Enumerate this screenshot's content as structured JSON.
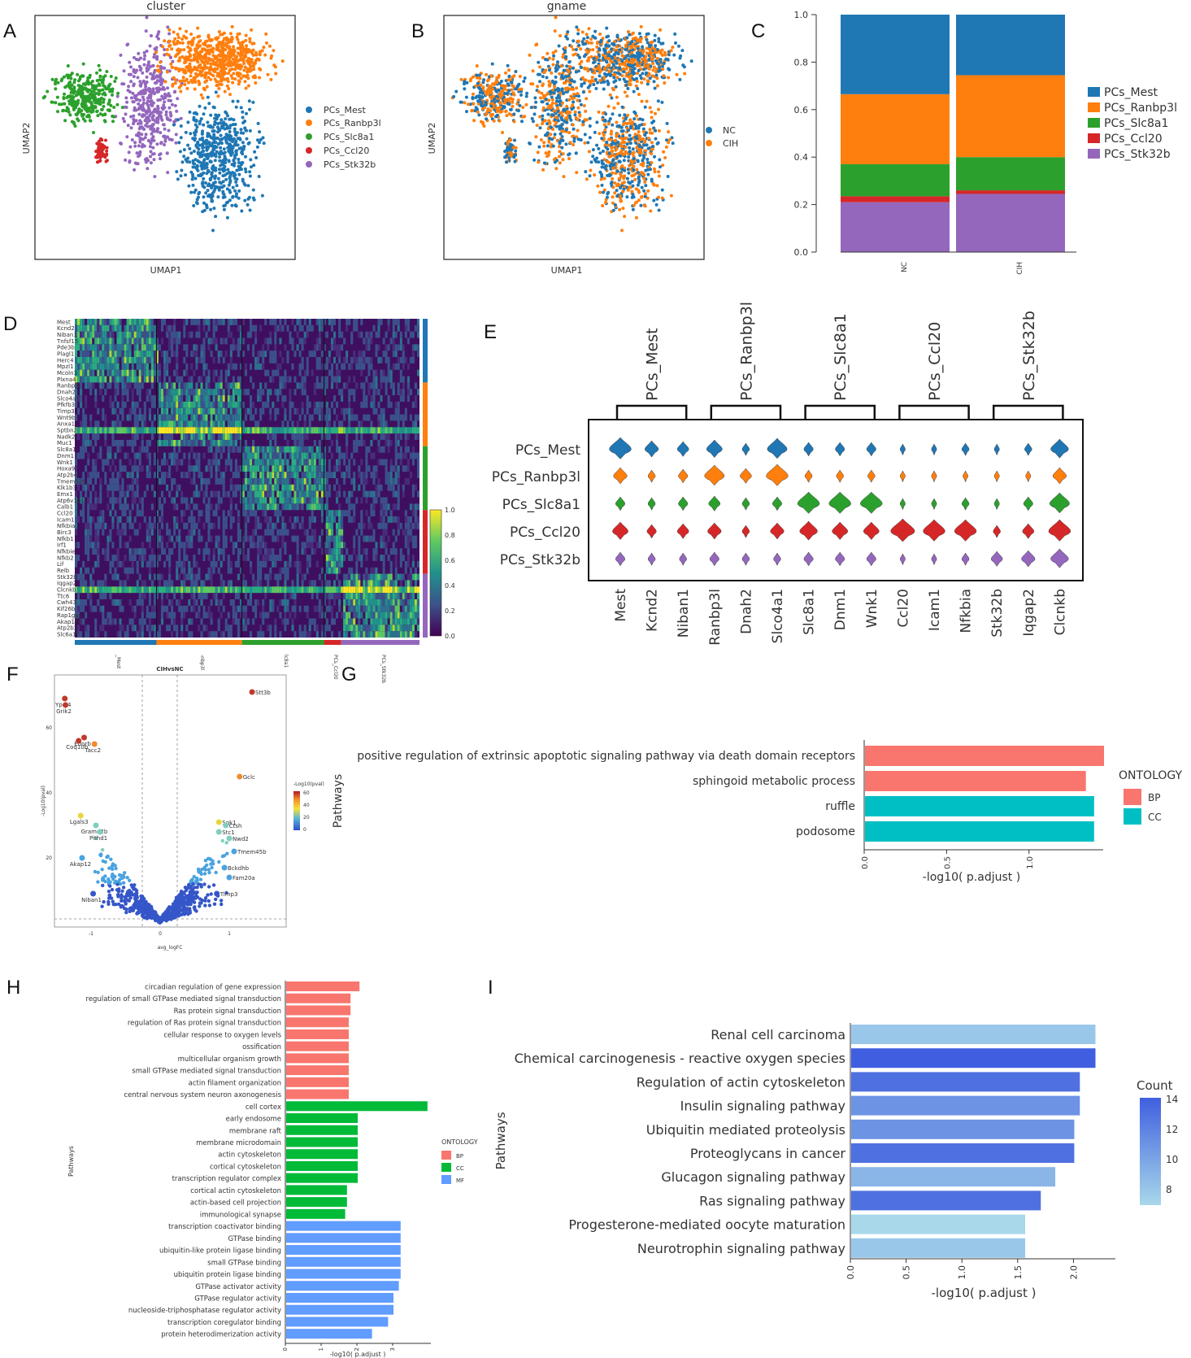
{
  "panel_labels": [
    "A",
    "B",
    "C",
    "D",
    "E",
    "F",
    "G",
    "H",
    "I"
  ],
  "colors": {
    "PCs_Mest": "#1f77b4",
    "PCs_Ranbp3l": "#ff7f0e",
    "PCs_Slc8a1": "#2ca02c",
    "PCs_Ccl20": "#d62728",
    "PCs_Stk32b": "#9467bd",
    "BP": "#f8766d",
    "CC": "#00bfc4",
    "H_CC": "#00ba38",
    "MF": "#619cff"
  },
  "chart_data": [
    {
      "id": "A",
      "type": "scatter",
      "title": "cluster",
      "xlabel": "UMAP1",
      "ylabel": "UMAP2",
      "legend": [
        "PCs_Mest",
        "PCs_Ranbp3l",
        "PCs_Slc8a1",
        "PCs_Ccl20",
        "PCs_Stk32b"
      ],
      "cluster_centers": [
        {
          "name": "PCs_Mest",
          "x": 0.78,
          "y": 0.55
        },
        {
          "name": "PCs_Ranbp3l",
          "x": 0.72,
          "y": 0.2
        },
        {
          "name": "PCs_Slc8a1",
          "x": 0.22,
          "y": 0.3
        },
        {
          "name": "PCs_Ccl20",
          "x": 0.3,
          "y": 0.58
        },
        {
          "name": "PCs_Stk32b",
          "x": 0.45,
          "y": 0.45
        }
      ]
    },
    {
      "id": "B",
      "type": "scatter",
      "title": "gname",
      "xlabel": "UMAP1",
      "ylabel": "UMAP2",
      "legend": [
        "NC",
        "CIH"
      ]
    },
    {
      "id": "C",
      "type": "bar",
      "stacked": true,
      "categories": [
        "NC",
        "CIH"
      ],
      "series": [
        {
          "name": "PCs_Stk32b",
          "values": [
            0.21,
            0.245
          ]
        },
        {
          "name": "PCs_Ccl20",
          "values": [
            0.025,
            0.015
          ]
        },
        {
          "name": "PCs_Slc8a1",
          "values": [
            0.135,
            0.14
          ]
        },
        {
          "name": "PCs_Ranbp3l",
          "values": [
            0.295,
            0.345
          ]
        },
        {
          "name": "PCs_Mest",
          "values": [
            0.335,
            0.255
          ]
        }
      ],
      "legend": [
        "PCs_Mest",
        "PCs_Ranbp3l",
        "PCs_Slc8a1",
        "PCs_Ccl20",
        "PCs_Stk32b"
      ],
      "yticks": [
        "0.0",
        "0.2",
        "0.4",
        "0.6",
        "0.8",
        "1.0"
      ],
      "ylim": [
        0,
        1
      ]
    },
    {
      "id": "D",
      "type": "heatmap",
      "genes": [
        "Mest",
        "Kcnd2",
        "Niban1",
        "Tnfsf15",
        "Pde3b",
        "Plagl1",
        "Herc4",
        "Mpzl1",
        "Mcoln3",
        "Plxna4",
        "Ranbp3l",
        "Dnah2",
        "Slco4a1",
        "Pfkfb3",
        "Timp3",
        "Wnt9b",
        "Anxa1",
        "Sptbn2",
        "Nadk2",
        "Muc1",
        "Slc8a1",
        "Dnm1",
        "Wnk1",
        "Hoxa9",
        "Atp2b4",
        "Tmem52b",
        "Klk1b3",
        "Emx1",
        "Atp6v1b1",
        "Calb1",
        "Ccl20",
        "Icam1",
        "Nfkbia",
        "Birc3",
        "Nfkb1",
        "Irf1",
        "Nfkbie",
        "Nfkb2",
        "Lif",
        "Relb",
        "Stk32b",
        "Iqgap2",
        "Clcnkb",
        "Ttc6",
        "Cwh43",
        "Kif26b",
        "Rap1gap",
        "Akap17b",
        "Atp2b2",
        "Slc6a17"
      ],
      "groups": [
        "_Mest",
        "-nbp3l",
        "lc8a1",
        "PCs_Ccl20",
        "PCs_Stk32b"
      ],
      "colorbar_ticks": [
        "0.0",
        "0.2",
        "0.4",
        "0.6",
        "0.8",
        "1.0"
      ]
    },
    {
      "id": "E",
      "type": "violin",
      "group_headers": [
        "PCs_Mest",
        "PCs_Ranbp3l",
        "PCs_Slc8a1",
        "PCs_Ccl20",
        "PCs_Stk32b"
      ],
      "rows": [
        "PCs_Mest",
        "PCs_Ranbp3l",
        "PCs_Slc8a1",
        "PCs_Ccl20",
        "PCs_Stk32b"
      ],
      "genes": [
        "Mest",
        "Kcnd2",
        "Niban1",
        "Ranbp3l",
        "Dnah2",
        "Slco4a1",
        "Slc8a1",
        "Dnm1",
        "Wnk1",
        "Ccl20",
        "Icam1",
        "Nfkbia",
        "Stk32b",
        "Iqgap2",
        "Clcnkb"
      ],
      "expression": [
        [
          0.9,
          0.5,
          0.4,
          0.6,
          0.2,
          0.8,
          0.3,
          0.3,
          0.3,
          0.1,
          0.1,
          0.2,
          0.1,
          0.2,
          0.7
        ],
        [
          0.5,
          0.2,
          0.3,
          0.8,
          0.4,
          0.9,
          0.2,
          0.2,
          0.2,
          0.1,
          0.1,
          0.1,
          0.1,
          0.1,
          0.5
        ],
        [
          0.3,
          0.2,
          0.3,
          0.4,
          0.2,
          0.3,
          0.9,
          0.9,
          0.9,
          0.1,
          0.1,
          0.2,
          0.1,
          0.3,
          0.8
        ],
        [
          0.6,
          0.3,
          0.4,
          0.5,
          0.2,
          0.5,
          0.7,
          0.6,
          0.6,
          1.0,
          0.9,
          0.9,
          0.2,
          0.4,
          0.9
        ],
        [
          0.3,
          0.2,
          0.2,
          0.3,
          0.2,
          0.2,
          0.3,
          0.3,
          0.3,
          0.1,
          0.1,
          0.2,
          0.4,
          0.5,
          0.7
        ]
      ]
    },
    {
      "id": "F",
      "type": "scatter",
      "title": "CIHvsNC",
      "xlabel": "avg_logFC",
      "ylabel": "-Log10(pval)",
      "colorbar_title": "-Log10(pval)",
      "colorbar_ticks": [
        "60",
        "40",
        "20",
        "0"
      ],
      "xticks": [
        "-1",
        "0",
        "1"
      ],
      "yticks": [
        "20",
        "40",
        "60"
      ],
      "labeled_points": [
        {
          "gene": "Ypel4",
          "x": -1.38,
          "y": 69
        },
        {
          "gene": "Grik2",
          "x": -1.37,
          "y": 67
        },
        {
          "gene": "Stt3b",
          "x": 1.33,
          "y": 71
        },
        {
          "gene": "Ednrb",
          "x": -1.1,
          "y": 57
        },
        {
          "gene": "Coq10b",
          "x": -1.18,
          "y": 56
        },
        {
          "gene": "Tacc2",
          "x": -0.95,
          "y": 55
        },
        {
          "gene": "Gclc",
          "x": 1.15,
          "y": 45
        },
        {
          "gene": "Lgals3",
          "x": -1.15,
          "y": 33
        },
        {
          "gene": "Gramd2b",
          "x": -0.93,
          "y": 30
        },
        {
          "gene": "Pithd1",
          "x": -0.87,
          "y": 28
        },
        {
          "gene": "Akap12",
          "x": -1.13,
          "y": 20
        },
        {
          "gene": "Niban1",
          "x": -0.97,
          "y": 9
        },
        {
          "gene": "Sgk1",
          "x": 0.85,
          "y": 31
        },
        {
          "gene": "Ctsh",
          "x": 0.95,
          "y": 30
        },
        {
          "gene": "Stc1",
          "x": 0.85,
          "y": 28
        },
        {
          "gene": "Nwd2",
          "x": 1.0,
          "y": 26
        },
        {
          "gene": "Tmem45b",
          "x": 1.07,
          "y": 22
        },
        {
          "gene": "Bckdhb",
          "x": 0.93,
          "y": 17
        },
        {
          "gene": "Fam20a",
          "x": 1.0,
          "y": 14
        },
        {
          "gene": "Timp3",
          "x": 0.82,
          "y": 9
        }
      ]
    },
    {
      "id": "G",
      "type": "bar",
      "orientation": "horizontal",
      "ylabel": "Pathways",
      "xlabel": "-log10( p.adjust )",
      "legend_title": "ONTOLOGY",
      "legend": [
        "BP",
        "CC"
      ],
      "xticks": [
        "0.0",
        "0.5",
        "1.0"
      ],
      "xlim": [
        0,
        1.45
      ],
      "categories": [
        "positive regulation of extrinsic apoptotic signaling pathway via death domain receptors",
        "sphingoid metabolic process",
        "ruffle",
        "podosome"
      ],
      "values": [
        1.45,
        1.34,
        1.39,
        1.39
      ],
      "ontology": [
        "BP",
        "BP",
        "CC",
        "CC"
      ]
    },
    {
      "id": "H",
      "type": "bar",
      "orientation": "horizontal",
      "ylabel": "Pathways",
      "xlabel": "-log10( p.adjust )",
      "legend_title": "ONTOLOGY",
      "legend": [
        "BP",
        "CC",
        "MF"
      ],
      "xticks": [
        "0",
        "1",
        "2",
        "3"
      ],
      "xlim": [
        0,
        4
      ],
      "categories": [
        "circadian regulation of gene expression",
        "regulation of small GTPase mediated signal transduction",
        "Ras protein signal transduction",
        "regulation of Ras protein signal transduction",
        "cellular response to oxygen levels",
        "ossification",
        "multicellular organism growth",
        "small GTPase mediated signal transduction",
        "actin filament organization",
        "central nervous system neuron axonogenesis",
        "cell cortex",
        "early endosome",
        "membrane raft",
        "membrane microdomain",
        "actin cytoskeleton",
        "cortical cytoskeleton",
        "transcription regulator complex",
        "cortical actin cytoskeleton",
        "actin-based cell projection",
        "immunological synapse",
        "transcription coactivator binding",
        "GTPase binding",
        "ubiquitin-like protein ligase binding",
        "small GTPase binding",
        "ubiquitin protein ligase binding",
        "GTPase activator activity",
        "GTPase regulator activity",
        "nucleoside-triphosphatase regulator activity",
        "transcription coregulator binding",
        "protein heterodimerization activity"
      ],
      "values": [
        2.05,
        1.8,
        1.8,
        1.75,
        1.75,
        1.75,
        1.75,
        1.75,
        1.75,
        1.75,
        3.95,
        2.0,
        2.0,
        2.0,
        2.0,
        2.0,
        2.0,
        1.7,
        1.7,
        1.65,
        3.2,
        3.2,
        3.2,
        3.2,
        3.2,
        3.15,
        3.0,
        3.0,
        2.85,
        2.4
      ],
      "ontology": [
        "BP",
        "BP",
        "BP",
        "BP",
        "BP",
        "BP",
        "BP",
        "BP",
        "BP",
        "BP",
        "CC",
        "CC",
        "CC",
        "CC",
        "CC",
        "CC",
        "CC",
        "CC",
        "CC",
        "CC",
        "MF",
        "MF",
        "MF",
        "MF",
        "MF",
        "MF",
        "MF",
        "MF",
        "MF",
        "MF"
      ]
    },
    {
      "id": "I",
      "type": "bar",
      "orientation": "horizontal",
      "ylabel": "Pathways",
      "xlabel": "-log10( p.adjust )",
      "legend_title": "Count",
      "colorbar_ticks": [
        "14",
        "12",
        "10",
        "8"
      ],
      "xticks": [
        "0.0",
        "0.5",
        "1.0",
        "1.5",
        "2.0"
      ],
      "xlim": [
        0,
        2.2
      ],
      "categories": [
        "Renal cell carcinoma",
        "Chemical carcinogenesis - reactive oxygen species",
        "Regulation of actin cytoskeleton",
        "Insulin signaling pathway",
        "Ubiquitin mediated proteolysis",
        "Proteoglycans in cancer",
        "Glucagon signaling pathway",
        "Ras signaling pathway",
        "Progesterone-mediated oocyte maturation",
        "Neurotrophin signaling pathway"
      ],
      "values": [
        2.19,
        2.19,
        2.05,
        2.05,
        2.0,
        2.0,
        1.83,
        1.7,
        1.56,
        1.56
      ],
      "counts": [
        8,
        14,
        13,
        11,
        11,
        13,
        9,
        13,
        7,
        8
      ]
    }
  ]
}
